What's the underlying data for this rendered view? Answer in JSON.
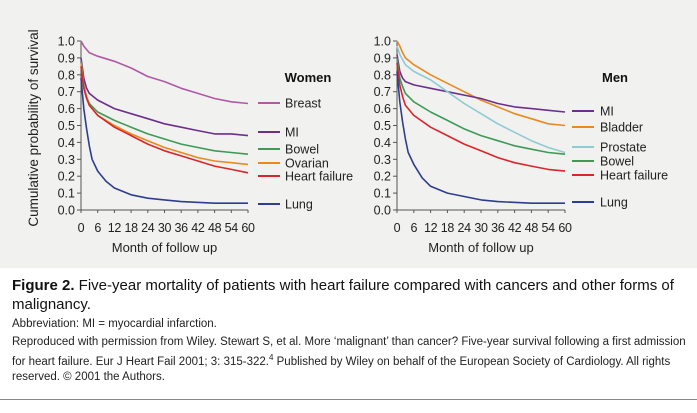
{
  "chart_data": {
    "type": "line",
    "ylabel": "Cumulative probability of survival",
    "colors": {
      "Breast": "#b05aa6",
      "MI": "#6e2f8c",
      "Bowel": "#3f9a58",
      "Ovarian": "#e88a1f",
      "Heart failure": "#d8262b",
      "Lung": "#2f3d8f",
      "Bladder": "#e88a1f",
      "Prostate": "#8ecbd2"
    },
    "panels": [
      {
        "title": "Women",
        "xlabel": "Month of follow up",
        "xticks": [
          "0",
          "6",
          "12",
          "18",
          "24",
          "30",
          "36",
          "42",
          "48",
          "54",
          "60"
        ],
        "yticks": [
          "0.0",
          "0.1",
          "0.2",
          "0.3",
          "0.4",
          "0.5",
          "0.6",
          "0.7",
          "0.8",
          "0.9",
          "1.0"
        ],
        "xlim": [
          0,
          60
        ],
        "ylim": [
          0,
          1
        ],
        "series": [
          {
            "name": "Breast",
            "points": [
              [
                0,
                1.0
              ],
              [
                1,
                0.97
              ],
              [
                2,
                0.95
              ],
              [
                3,
                0.93
              ],
              [
                6,
                0.91
              ],
              [
                12,
                0.88
              ],
              [
                18,
                0.84
              ],
              [
                24,
                0.79
              ],
              [
                30,
                0.76
              ],
              [
                36,
                0.72
              ],
              [
                42,
                0.69
              ],
              [
                48,
                0.66
              ],
              [
                54,
                0.64
              ],
              [
                60,
                0.63
              ]
            ]
          },
          {
            "name": "MI",
            "points": [
              [
                0,
                0.9
              ],
              [
                1,
                0.78
              ],
              [
                2,
                0.72
              ],
              [
                3,
                0.69
              ],
              [
                6,
                0.65
              ],
              [
                12,
                0.6
              ],
              [
                18,
                0.57
              ],
              [
                24,
                0.54
              ],
              [
                30,
                0.51
              ],
              [
                36,
                0.49
              ],
              [
                42,
                0.47
              ],
              [
                48,
                0.45
              ],
              [
                54,
                0.45
              ],
              [
                60,
                0.44
              ]
            ]
          },
          {
            "name": "Bowel",
            "points": [
              [
                0,
                0.88
              ],
              [
                1,
                0.74
              ],
              [
                2,
                0.67
              ],
              [
                3,
                0.63
              ],
              [
                6,
                0.58
              ],
              [
                12,
                0.53
              ],
              [
                18,
                0.49
              ],
              [
                24,
                0.45
              ],
              [
                30,
                0.42
              ],
              [
                36,
                0.39
              ],
              [
                42,
                0.37
              ],
              [
                48,
                0.35
              ],
              [
                54,
                0.34
              ],
              [
                60,
                0.33
              ]
            ]
          },
          {
            "name": "Ovarian",
            "points": [
              [
                0,
                0.87
              ],
              [
                1,
                0.73
              ],
              [
                2,
                0.67
              ],
              [
                3,
                0.62
              ],
              [
                6,
                0.56
              ],
              [
                12,
                0.5
              ],
              [
                18,
                0.45
              ],
              [
                24,
                0.41
              ],
              [
                30,
                0.37
              ],
              [
                36,
                0.34
              ],
              [
                42,
                0.31
              ],
              [
                48,
                0.29
              ],
              [
                54,
                0.28
              ],
              [
                60,
                0.27
              ]
            ]
          },
          {
            "name": "Heart failure",
            "points": [
              [
                0,
                0.85
              ],
              [
                1,
                0.72
              ],
              [
                2,
                0.66
              ],
              [
                3,
                0.62
              ],
              [
                6,
                0.56
              ],
              [
                12,
                0.49
              ],
              [
                18,
                0.44
              ],
              [
                24,
                0.39
              ],
              [
                30,
                0.35
              ],
              [
                36,
                0.32
              ],
              [
                42,
                0.29
              ],
              [
                48,
                0.26
              ],
              [
                54,
                0.24
              ],
              [
                60,
                0.22
              ]
            ]
          },
          {
            "name": "Lung",
            "points": [
              [
                0,
                0.78
              ],
              [
                1,
                0.6
              ],
              [
                2,
                0.48
              ],
              [
                3,
                0.38
              ],
              [
                4,
                0.3
              ],
              [
                6,
                0.23
              ],
              [
                9,
                0.17
              ],
              [
                12,
                0.13
              ],
              [
                18,
                0.09
              ],
              [
                24,
                0.07
              ],
              [
                30,
                0.06
              ],
              [
                36,
                0.05
              ],
              [
                48,
                0.04
              ],
              [
                60,
                0.04
              ]
            ]
          }
        ],
        "legend": [
          "Breast",
          "MI",
          "Bowel",
          "Ovarian",
          "Heart failure",
          "Lung"
        ]
      },
      {
        "title": "Men",
        "xlabel": "Month of follow up",
        "xticks": [
          "0",
          "6",
          "12",
          "18",
          "24",
          "30",
          "36",
          "42",
          "48",
          "54",
          "60"
        ],
        "yticks": [
          "0.0",
          "0.1",
          "0.2",
          "0.3",
          "0.4",
          "0.5",
          "0.6",
          "0.7",
          "0.8",
          "0.9",
          "1.0"
        ],
        "xlim": [
          0,
          60
        ],
        "ylim": [
          0,
          1
        ],
        "series": [
          {
            "name": "Bladder",
            "points": [
              [
                0,
                1.0
              ],
              [
                1,
                0.97
              ],
              [
                2,
                0.93
              ],
              [
                3,
                0.9
              ],
              [
                6,
                0.86
              ],
              [
                12,
                0.8
              ],
              [
                18,
                0.75
              ],
              [
                24,
                0.7
              ],
              [
                30,
                0.65
              ],
              [
                36,
                0.61
              ],
              [
                42,
                0.57
              ],
              [
                48,
                0.54
              ],
              [
                54,
                0.51
              ],
              [
                60,
                0.5
              ]
            ]
          },
          {
            "name": "MI",
            "points": [
              [
                0,
                0.92
              ],
              [
                1,
                0.82
              ],
              [
                2,
                0.78
              ],
              [
                3,
                0.76
              ],
              [
                6,
                0.74
              ],
              [
                12,
                0.72
              ],
              [
                18,
                0.7
              ],
              [
                24,
                0.68
              ],
              [
                30,
                0.66
              ],
              [
                36,
                0.63
              ],
              [
                42,
                0.61
              ],
              [
                48,
                0.6
              ],
              [
                54,
                0.59
              ],
              [
                60,
                0.58
              ]
            ]
          },
          {
            "name": "Prostate",
            "points": [
              [
                0,
                0.97
              ],
              [
                1,
                0.92
              ],
              [
                2,
                0.89
              ],
              [
                3,
                0.86
              ],
              [
                6,
                0.82
              ],
              [
                12,
                0.77
              ],
              [
                18,
                0.7
              ],
              [
                24,
                0.63
              ],
              [
                30,
                0.57
              ],
              [
                36,
                0.51
              ],
              [
                42,
                0.46
              ],
              [
                48,
                0.41
              ],
              [
                54,
                0.37
              ],
              [
                60,
                0.34
              ]
            ]
          },
          {
            "name": "Bowel",
            "points": [
              [
                0,
                0.9
              ],
              [
                1,
                0.78
              ],
              [
                2,
                0.73
              ],
              [
                3,
                0.69
              ],
              [
                6,
                0.64
              ],
              [
                12,
                0.58
              ],
              [
                18,
                0.53
              ],
              [
                24,
                0.48
              ],
              [
                30,
                0.44
              ],
              [
                36,
                0.41
              ],
              [
                42,
                0.38
              ],
              [
                48,
                0.36
              ],
              [
                54,
                0.34
              ],
              [
                60,
                0.33
              ]
            ]
          },
          {
            "name": "Heart failure",
            "points": [
              [
                0,
                0.87
              ],
              [
                1,
                0.74
              ],
              [
                2,
                0.67
              ],
              [
                3,
                0.62
              ],
              [
                6,
                0.56
              ],
              [
                12,
                0.49
              ],
              [
                18,
                0.44
              ],
              [
                24,
                0.39
              ],
              [
                30,
                0.35
              ],
              [
                36,
                0.31
              ],
              [
                42,
                0.28
              ],
              [
                48,
                0.26
              ],
              [
                54,
                0.24
              ],
              [
                60,
                0.23
              ]
            ]
          },
          {
            "name": "Lung",
            "points": [
              [
                0,
                0.82
              ],
              [
                1,
                0.64
              ],
              [
                2,
                0.52
              ],
              [
                3,
                0.42
              ],
              [
                4,
                0.34
              ],
              [
                6,
                0.27
              ],
              [
                9,
                0.19
              ],
              [
                12,
                0.14
              ],
              [
                18,
                0.1
              ],
              [
                24,
                0.08
              ],
              [
                30,
                0.06
              ],
              [
                36,
                0.05
              ],
              [
                48,
                0.04
              ],
              [
                60,
                0.04
              ]
            ]
          }
        ],
        "legend": [
          "MI",
          "Bladder",
          "Prostate",
          "Bowel",
          "Heart failure",
          "Lung"
        ]
      }
    ]
  },
  "caption": {
    "figure_label": "Figure 2.",
    "title": " Five-year mortality of patients with heart failure compared with cancers and other forms of malignancy.",
    "abbreviation": "Abbreviation: MI = myocardial infarction.",
    "credit": "Reproduced with permission from Wiley. Stewart S, et al. More ‘malignant’ than cancer? Five-year survival following a first admission for heart failure. Eur J Heart Fail 2001; 3: 315-322.",
    "credit_ref": "4",
    "credit_tail": " Published by Wiley on behalf of the European Society of Cardiology. All rights reserved. © 2001 the Authors."
  }
}
